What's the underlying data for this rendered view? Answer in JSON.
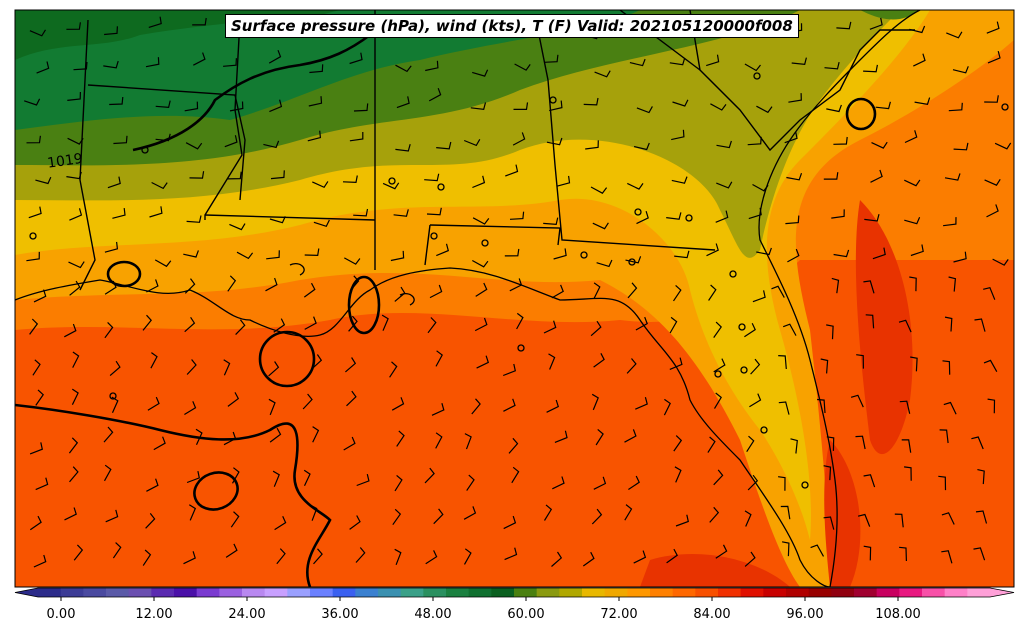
{
  "title": "Surface pressure (hPa), wind (kts), T (F) Valid: 202105120000f008",
  "contour_label": "1019",
  "colorbar": {
    "ticks": [
      "0.00",
      "12.00",
      "24.00",
      "36.00",
      "48.00",
      "60.00",
      "72.00",
      "84.00",
      "96.00",
      "108.00"
    ],
    "colors": [
      "#2b2b8a",
      "#3c3c96",
      "#4a4aa0",
      "#5a5aa8",
      "#6a4fb0",
      "#5a2ab0",
      "#4a10a8",
      "#7a3ad0",
      "#9a60e0",
      "#b888f0",
      "#c8a0ff",
      "#9aa0ff",
      "#6a80ff",
      "#3a60f0",
      "#3a80d0",
      "#3a90b0",
      "#3aa088",
      "#2a9060",
      "#1a8040",
      "#107030",
      "#0a6020",
      "#4a8010",
      "#8a9a10",
      "#b0a800",
      "#e8b800",
      "#f0a800",
      "#ff9800",
      "#ff8000",
      "#ff6800",
      "#f85000",
      "#f03000",
      "#e01000",
      "#c80000",
      "#b00000",
      "#980000",
      "#900010",
      "#a00030",
      "#c80060",
      "#e81880",
      "#f850a8",
      "#ff80c8",
      "#ffa0d8"
    ]
  },
  "temperature_colors": {
    "dark_green": "#0e6a1f",
    "green": "#127b32",
    "olive_green": "#4a8012",
    "olive": "#a6a10b",
    "yellow": "#efbf00",
    "orange_light": "#f8a200",
    "orange": "#fb7d00",
    "orange_red": "#f85400",
    "red_orange": "#e83300"
  },
  "layers": [
    "temperature-fill",
    "state-borders",
    "coastline",
    "pressure-isobars",
    "wind-barbs",
    "colorbar"
  ]
}
